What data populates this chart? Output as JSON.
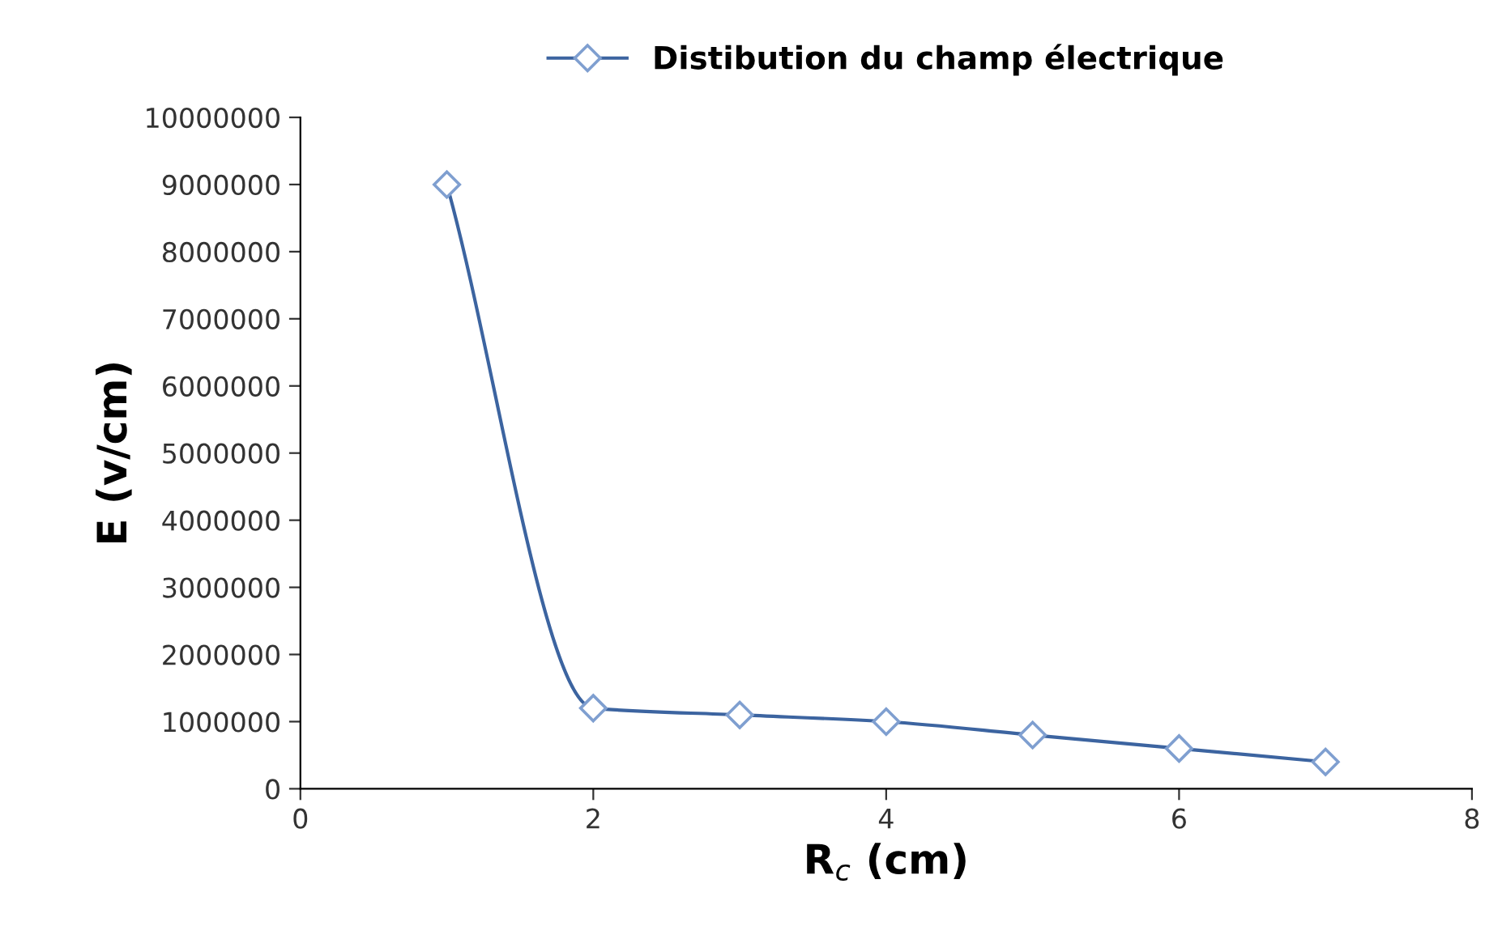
{
  "chart_data": {
    "type": "line",
    "xlabel": "R$_{c}$ (cm)",
    "ylabel": "E (v/cm)",
    "x": [
      1,
      2,
      3,
      4,
      5,
      6,
      7
    ],
    "series": [
      {
        "name": "Distibution du champ électrique",
        "color": "#3c64a0",
        "values": [
          9000000,
          1200000,
          1100000,
          1000000,
          800000,
          600000,
          400000
        ]
      }
    ],
    "xlim": [
      0,
      8
    ],
    "xticks": [
      0,
      2,
      4,
      6,
      8
    ],
    "ylim": [
      0,
      10000000
    ],
    "yticks": [
      0,
      1000000,
      2000000,
      3000000,
      4000000,
      5000000,
      6000000,
      7000000,
      8000000,
      9000000,
      10000000
    ],
    "marker": "diamond",
    "line_style": "solid",
    "grid": false,
    "legend": "top"
  }
}
